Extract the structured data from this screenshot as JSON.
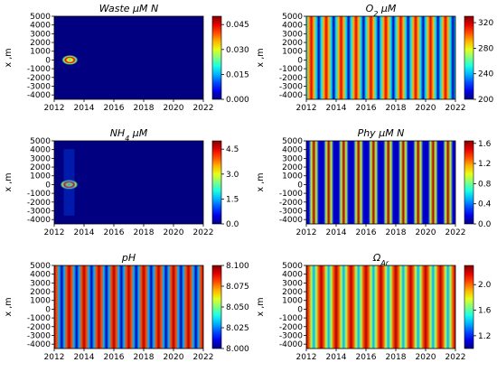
{
  "chart_data": [
    {
      "type": "heatmap",
      "title": "Waste μM N",
      "ylabel": "x ,m",
      "xlim": [
        2012,
        2022
      ],
      "ylim": [
        -4500,
        5000
      ],
      "x_ticks": [
        "2012",
        "2014",
        "2016",
        "2018",
        "2020",
        "2022"
      ],
      "y_ticks": [
        "5000",
        "4000",
        "3000",
        "2000",
        "1000",
        "0",
        "-1000",
        "-2000",
        "-3000",
        "-4000"
      ],
      "colorbar": {
        "range": [
          0.0,
          0.05
        ],
        "ticks": [
          "0.000",
          "0.015",
          "0.030",
          "0.045"
        ]
      },
      "pattern": "background-with-local-spot",
      "background_value": 0.0,
      "spot": {
        "x_range": [
          2012.5,
          2013.6
        ],
        "y_center": 0,
        "peak": 0.05
      }
    },
    {
      "type": "heatmap",
      "title_main": "O",
      "title_sub": "2",
      "title_rest": " μM",
      "ylabel": "x ,m",
      "xlim": [
        2012,
        2022
      ],
      "ylim": [
        -4500,
        5000
      ],
      "x_ticks": [
        "2012",
        "2014",
        "2016",
        "2018",
        "2020",
        "2022"
      ],
      "y_ticks": [
        "5000",
        "4000",
        "3000",
        "2000",
        "1000",
        "0",
        "-1000",
        "-2000",
        "-3000",
        "-4000"
      ],
      "colorbar": {
        "range": [
          200,
          330
        ],
        "ticks": [
          "200",
          "240",
          "280",
          "320"
        ]
      },
      "pattern": "seasonal-stripes",
      "period_years": 1,
      "value_range": [
        200,
        330
      ]
    },
    {
      "type": "heatmap",
      "title_main": "NH",
      "title_sub": "4",
      "title_rest": " μM",
      "ylabel": "x ,m",
      "xlim": [
        2012,
        2022
      ],
      "ylim": [
        -4500,
        5000
      ],
      "x_ticks": [
        "2012",
        "2014",
        "2016",
        "2018",
        "2020",
        "2022"
      ],
      "y_ticks": [
        "5000",
        "4000",
        "3000",
        "2000",
        "1000",
        "0",
        "-1000",
        "-2000",
        "-3000",
        "-4000"
      ],
      "colorbar": {
        "range": [
          0.0,
          5.0
        ],
        "ticks": [
          "0.0",
          "1.5",
          "3.0",
          "4.5"
        ]
      },
      "pattern": "background-with-local-spot",
      "background_value": 0.0,
      "spot": {
        "x_range": [
          2012.4,
          2013.6
        ],
        "y_center": 0,
        "peak": 5.0
      }
    },
    {
      "type": "heatmap",
      "title": "Phy μM N",
      "ylabel": "x ,m",
      "xlim": [
        2012,
        2022
      ],
      "ylim": [
        -4500,
        5000
      ],
      "x_ticks": [
        "2012",
        "2014",
        "2016",
        "2018",
        "2020",
        "2022"
      ],
      "y_ticks": [
        "5000",
        "4000",
        "3000",
        "2000",
        "1000",
        "0",
        "-1000",
        "-2000",
        "-3000",
        "-4000"
      ],
      "colorbar": {
        "range": [
          0.0,
          1.65
        ],
        "ticks": [
          "0.0",
          "0.4",
          "0.8",
          "1.2",
          "1.6"
        ]
      },
      "pattern": "seasonal-stripes",
      "period_years": 1,
      "value_range": [
        0.0,
        1.65
      ]
    },
    {
      "type": "heatmap",
      "title": "pH",
      "ylabel": "x ,m",
      "xlim": [
        2012,
        2022
      ],
      "ylim": [
        -4500,
        5000
      ],
      "x_ticks": [
        "2012",
        "2014",
        "2016",
        "2018",
        "2020",
        "2022"
      ],
      "y_ticks": [
        "5000",
        "4000",
        "3000",
        "2000",
        "1000",
        "0",
        "-1000",
        "-2000",
        "-3000",
        "-4000"
      ],
      "colorbar": {
        "range": [
          8.0,
          8.1
        ],
        "ticks": [
          "8.000",
          "8.025",
          "8.050",
          "8.075",
          "8.100"
        ]
      },
      "pattern": "seasonal-stripes",
      "period_years": 1,
      "value_range": [
        8.0,
        8.1
      ]
    },
    {
      "type": "heatmap",
      "title_main": "Ω",
      "title_sub": "Ar",
      "title_rest": "",
      "ylabel": "x ,m",
      "xlim": [
        2012,
        2022
      ],
      "ylim": [
        -4500,
        5000
      ],
      "x_ticks": [
        "2012",
        "2014",
        "2016",
        "2018",
        "2020",
        "2022"
      ],
      "y_ticks": [
        "5000",
        "4000",
        "3000",
        "2000",
        "1000",
        "0",
        "-1000",
        "-2000",
        "-3000",
        "-4000"
      ],
      "colorbar": {
        "range": [
          1.0,
          2.3
        ],
        "ticks": [
          "1.2",
          "1.6",
          "2.0"
        ]
      },
      "pattern": "seasonal-stripes",
      "period_years": 1,
      "value_range": [
        1.0,
        2.3
      ]
    }
  ]
}
